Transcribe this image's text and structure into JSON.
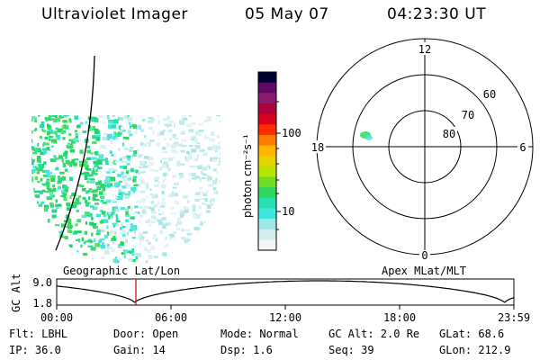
{
  "header": {
    "instrument": "Ultraviolet Imager",
    "date": "05 May 07",
    "time": "04:23:30 UT"
  },
  "colorbar": {
    "unit_label": "photon cm⁻²s⁻¹",
    "ticks": [
      "100",
      "10"
    ],
    "colors": [
      "#000033",
      "#5c0a66",
      "#8b1a6b",
      "#b0003a",
      "#d80020",
      "#ff2a00",
      "#ff7a00",
      "#ffb400",
      "#e6d200",
      "#b8e600",
      "#72dd22",
      "#2ed860",
      "#25e0b0",
      "#3fe6e0",
      "#9fe8e8",
      "#d0eeee",
      "#f2f6f6"
    ]
  },
  "polar_plot": {
    "mlt_labels": {
      "top": "12",
      "bottom": "0",
      "left": "18",
      "right": "6"
    },
    "lat_labels": [
      "60",
      "70",
      "80"
    ]
  },
  "image_footer": {
    "left_label": "Geographic Lat/Lon",
    "right_label": "Apex MLat/MLT"
  },
  "altitude_panel": {
    "ylabel": "GC Alt",
    "ymax": "9.0",
    "ymin": "1.8",
    "xticks": [
      "00:00",
      "06:00",
      "12:00",
      "18:00",
      "23:59"
    ],
    "current_time_marker": "04:23:30"
  },
  "status": {
    "flt": "Flt: LBHL",
    "ip": "IP: 36.0",
    "door": "Door: Open",
    "gain": "Gain: 14",
    "mode": "Mode: Normal",
    "dsp": "Dsp:    1.6",
    "gc_alt": "GC Alt: 2.0 Re",
    "seq": "Seq: 39",
    "glat": "GLat:  68.6",
    "glon": "GLon: 212.9"
  }
}
